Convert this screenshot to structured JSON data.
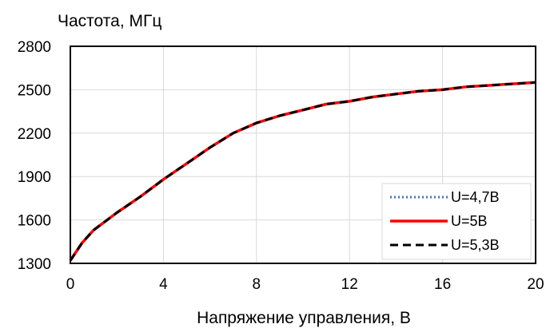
{
  "chart_data": {
    "type": "line",
    "title": "",
    "xlabel": "Напряжение управления, В",
    "ylabel": "Частота, МГц",
    "xlim": [
      0,
      20
    ],
    "ylim": [
      1300,
      2800
    ],
    "xticks": [
      0,
      4,
      8,
      12,
      16,
      20
    ],
    "yticks": [
      1300,
      1600,
      1900,
      2200,
      2500,
      2800
    ],
    "grid": true,
    "legend_position": "bottom-right",
    "series": [
      {
        "name": "U=4,7В",
        "color": "#4472C4",
        "style": "dotted",
        "x": [
          0,
          0.5,
          1,
          1.5,
          2,
          3,
          4,
          5,
          6,
          7,
          8,
          9,
          10,
          11,
          12,
          13,
          14,
          15,
          16,
          17,
          18,
          19,
          20
        ],
        "y": [
          1320,
          1440,
          1530,
          1590,
          1650,
          1760,
          1880,
          1990,
          2100,
          2200,
          2270,
          2320,
          2360,
          2400,
          2420,
          2450,
          2470,
          2490,
          2500,
          2520,
          2530,
          2540,
          2550
        ]
      },
      {
        "name": "U=5В",
        "color": "#FF0000",
        "style": "solid",
        "x": [
          0,
          0.5,
          1,
          1.5,
          2,
          3,
          4,
          5,
          6,
          7,
          8,
          9,
          10,
          11,
          12,
          13,
          14,
          15,
          16,
          17,
          18,
          19,
          20
        ],
        "y": [
          1320,
          1440,
          1530,
          1590,
          1650,
          1760,
          1880,
          1990,
          2100,
          2200,
          2270,
          2320,
          2360,
          2400,
          2420,
          2450,
          2470,
          2490,
          2500,
          2520,
          2530,
          2540,
          2550
        ]
      },
      {
        "name": "U=5,3В",
        "color": "#000000",
        "style": "dashed",
        "x": [
          0,
          0.5,
          1,
          1.5,
          2,
          3,
          4,
          5,
          6,
          7,
          8,
          9,
          10,
          11,
          12,
          13,
          14,
          15,
          16,
          17,
          18,
          19,
          20
        ],
        "y": [
          1320,
          1440,
          1530,
          1590,
          1650,
          1760,
          1880,
          1990,
          2100,
          2200,
          2270,
          2320,
          2360,
          2400,
          2420,
          2450,
          2470,
          2490,
          2500,
          2520,
          2530,
          2540,
          2550
        ]
      }
    ]
  }
}
